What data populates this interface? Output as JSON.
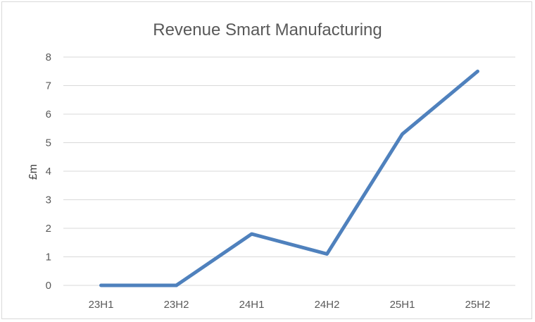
{
  "chart_data": {
    "type": "line",
    "title": "Revenue Smart Manufacturing",
    "xlabel": "",
    "ylabel": "£m",
    "categories": [
      "23H1",
      "23H2",
      "24H1",
      "24H2",
      "25H1",
      "25H2"
    ],
    "series": [
      {
        "values": [
          0,
          0,
          1.8,
          1.1,
          5.3,
          7.5
        ]
      }
    ],
    "yticks": [
      0,
      1,
      2,
      3,
      4,
      5,
      6,
      7,
      8
    ],
    "ylim": [
      0,
      8
    ],
    "grid": true,
    "legend": "none",
    "colors": {
      "series": "#4f81bd",
      "grid": "#d9d9d9",
      "text": "#595959"
    }
  }
}
